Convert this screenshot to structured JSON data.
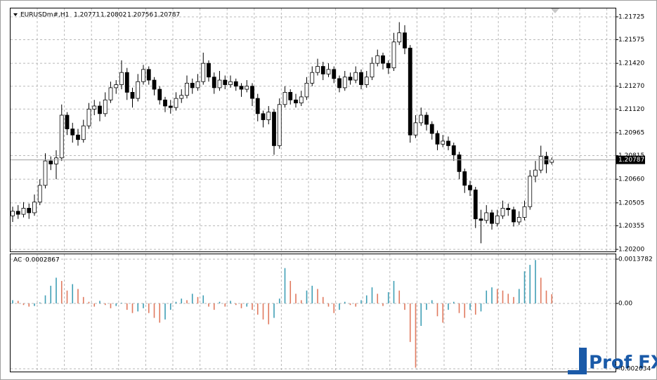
{
  "chart_data": [
    {
      "type": "candlestick",
      "title": "EURUSDm#,H1",
      "up_color": "#ffffff",
      "down_color": "#000000",
      "grid": true,
      "ylim": [
        1.20191,
        1.2178
      ],
      "yticks": [
        {
          "value": 1.202,
          "label": "1.20200"
        },
        {
          "value": 1.20355,
          "label": "1.20355"
        },
        {
          "value": 1.20505,
          "label": "1.20505"
        },
        {
          "value": 1.2066,
          "label": "1.20660"
        },
        {
          "value": 1.20815,
          "label": "1.20815"
        },
        {
          "value": 1.20965,
          "label": "1.20965"
        },
        {
          "value": 1.2112,
          "label": "1.21120"
        },
        {
          "value": 1.2127,
          "label": "1.21270"
        },
        {
          "value": 1.2142,
          "label": "1.21420"
        },
        {
          "value": 1.21575,
          "label": "1.21575"
        },
        {
          "value": 1.21725,
          "label": "1.21725"
        }
      ],
      "open": [
        1.2042,
        1.2045,
        1.2043,
        1.2047,
        1.2044,
        1.2051,
        1.2062,
        1.2078,
        1.2076,
        1.208,
        1.2108,
        1.2099,
        1.2095,
        1.2092,
        1.2101,
        1.2112,
        1.2114,
        1.2109,
        1.2118,
        1.2126,
        1.2128,
        1.2136,
        1.2123,
        1.2119,
        1.213,
        1.2138,
        1.2131,
        1.2125,
        1.2118,
        1.2114,
        1.2113,
        1.2119,
        1.2121,
        1.2129,
        1.2126,
        1.213,
        1.2142,
        1.2133,
        1.2126,
        1.2131,
        1.2128,
        1.213,
        1.2127,
        1.2125,
        1.2127,
        1.2119,
        1.2109,
        1.2105,
        1.211,
        1.2088,
        1.2115,
        1.2123,
        1.2118,
        1.2116,
        1.212,
        1.2129,
        1.2136,
        1.214,
        1.2135,
        1.2138,
        1.2132,
        1.2126,
        1.2133,
        1.2131,
        1.2136,
        1.2128,
        1.2133,
        1.2142,
        1.2147,
        1.2142,
        1.2139,
        1.2156,
        1.2162,
        1.2152,
        1.2095,
        1.2103,
        1.2108,
        1.2102,
        1.2096,
        1.2089,
        1.2091,
        1.2088,
        1.2082,
        1.2071,
        1.2062,
        1.2059,
        1.204,
        1.2039,
        1.2044,
        1.2037,
        1.2042,
        1.2047,
        1.2046,
        1.2038,
        1.2041,
        1.2048,
        1.2068,
        1.2072,
        1.2081,
        1.20771
      ],
      "high": [
        1.2048,
        1.2049,
        1.2051,
        1.205,
        1.2056,
        1.2066,
        1.2083,
        1.2081,
        1.2085,
        1.2115,
        1.211,
        1.2103,
        1.2099,
        1.2105,
        1.2116,
        1.2118,
        1.2117,
        1.2123,
        1.213,
        1.2131,
        1.2144,
        1.2139,
        1.2126,
        1.2135,
        1.2141,
        1.214,
        1.2133,
        1.2127,
        1.212,
        1.2118,
        1.2123,
        1.2125,
        1.2134,
        1.2132,
        1.2135,
        1.2149,
        1.2144,
        1.2136,
        1.2137,
        1.2134,
        1.2134,
        1.2132,
        1.2129,
        1.2131,
        1.2129,
        1.2122,
        1.2111,
        1.2114,
        1.2112,
        1.2119,
        1.2127,
        1.2125,
        1.2122,
        1.2124,
        1.2133,
        1.214,
        1.2145,
        1.2143,
        1.2142,
        1.214,
        1.2134,
        1.2137,
        1.2136,
        1.214,
        1.2138,
        1.2137,
        1.2146,
        1.2151,
        1.2149,
        1.2144,
        1.2162,
        1.2169,
        1.2167,
        1.2154,
        1.2108,
        1.2113,
        1.211,
        1.2104,
        1.2098,
        1.2095,
        1.2094,
        1.209,
        1.2084,
        1.2073,
        1.2065,
        1.2061,
        1.2046,
        1.2049,
        1.2046,
        1.2046,
        1.2052,
        1.205,
        1.2048,
        1.2045,
        1.2052,
        1.2072,
        1.2078,
        1.2088,
        1.2084,
        1.20802
      ],
      "low": [
        1.2038,
        1.204,
        1.2041,
        1.204,
        1.2042,
        1.2049,
        1.206,
        1.2072,
        1.2066,
        1.2078,
        1.2095,
        1.209,
        1.2088,
        1.209,
        1.2099,
        1.2108,
        1.2104,
        1.2107,
        1.2116,
        1.2122,
        1.2125,
        1.2118,
        1.2113,
        1.2117,
        1.2128,
        1.2128,
        1.2121,
        1.2115,
        1.211,
        1.2109,
        1.2111,
        1.2116,
        1.2119,
        1.2122,
        1.2124,
        1.2128,
        1.213,
        1.2122,
        1.2124,
        1.2125,
        1.2126,
        1.2124,
        1.212,
        1.2123,
        1.2114,
        1.2104,
        1.21,
        1.2102,
        1.2082,
        1.2086,
        1.2113,
        1.2115,
        1.2113,
        1.2114,
        1.2118,
        1.2127,
        1.2134,
        1.2131,
        1.2133,
        1.2129,
        1.2123,
        1.2124,
        1.2128,
        1.2129,
        1.2125,
        1.2126,
        1.2131,
        1.214,
        1.2138,
        1.2135,
        1.2137,
        1.2154,
        1.2148,
        1.209,
        1.2093,
        1.2101,
        1.2098,
        1.2092,
        1.2085,
        1.2087,
        1.2085,
        1.2078,
        1.2066,
        1.2057,
        1.2055,
        1.2034,
        1.2024,
        1.2037,
        1.2033,
        1.2035,
        1.204,
        1.2042,
        1.2035,
        1.2036,
        1.2039,
        1.2046,
        1.2064,
        1.207,
        1.207,
        1.20756
      ],
      "close": [
        1.2045,
        1.2043,
        1.2047,
        1.2044,
        1.2051,
        1.2062,
        1.2078,
        1.2076,
        1.208,
        1.2108,
        1.2099,
        1.2095,
        1.2092,
        1.2101,
        1.2112,
        1.2114,
        1.2109,
        1.2118,
        1.2126,
        1.2128,
        1.2136,
        1.2123,
        1.2119,
        1.213,
        1.2138,
        1.2131,
        1.2125,
        1.2118,
        1.2114,
        1.2113,
        1.2119,
        1.2121,
        1.2129,
        1.2126,
        1.213,
        1.2142,
        1.2133,
        1.2126,
        1.2131,
        1.2128,
        1.213,
        1.2127,
        1.2125,
        1.2127,
        1.2119,
        1.2109,
        1.2105,
        1.211,
        1.2088,
        1.2115,
        1.2123,
        1.2118,
        1.2116,
        1.212,
        1.2129,
        1.2136,
        1.214,
        1.2135,
        1.2138,
        1.2132,
        1.2126,
        1.2133,
        1.2131,
        1.2136,
        1.2128,
        1.2133,
        1.2142,
        1.2147,
        1.2142,
        1.2139,
        1.2156,
        1.2162,
        1.2152,
        1.2095,
        1.2103,
        1.2108,
        1.2102,
        1.2096,
        1.2089,
        1.2091,
        1.2088,
        1.2082,
        1.2071,
        1.2062,
        1.2059,
        1.204,
        1.2039,
        1.2044,
        1.2037,
        1.2042,
        1.2047,
        1.2046,
        1.2038,
        1.2041,
        1.2048,
        1.2068,
        1.2072,
        1.2081,
        1.2076,
        1.20787
      ]
    },
    {
      "type": "bar",
      "title": "AC",
      "up_color": "#3f9fb5",
      "down_color": "#e07a5f",
      "grid": true,
      "ylim": [
        -0.0021,
        0.00153
      ],
      "yticks": [
        -0.002034,
        {
          "value": 0,
          "label": "0.00"
        },
        0.0013782
      ],
      "values": [
        0.0001,
        8e-05,
        -5e-05,
        -0.0001,
        -8e-05,
        3e-05,
        0.00025,
        0.00055,
        0.0008,
        0.0007,
        0.0004,
        0.0006,
        0.00045,
        0.0002,
        5e-05,
        -0.0001,
        8e-05,
        -5e-05,
        -0.00015,
        -8e-05,
        2e-05,
        -0.0002,
        -0.0003,
        -0.00025,
        -0.00015,
        -0.0003,
        -0.00045,
        -0.0006,
        -0.0005,
        -0.0002,
        5e-05,
        0.00015,
        0.0001,
        0.0003,
        0.0002,
        0.00025,
        -0.0001,
        -0.0002,
        5e-05,
        -0.0001,
        8e-05,
        -5e-05,
        -0.00015,
        -0.0001,
        -0.0002,
        -0.00035,
        -0.0005,
        -0.00065,
        -0.00045,
        0.00015,
        0.0011,
        0.0007,
        0.0003,
        0.0001,
        0.0004,
        0.00055,
        0.00045,
        0.0002,
        -0.0001,
        -0.0003,
        -0.0002,
        5e-05,
        -5e-05,
        -0.0001,
        0.0001,
        0.00025,
        0.0005,
        0.0003,
        -8e-05,
        0.00035,
        0.0007,
        0.0004,
        -0.0002,
        -0.0012,
        -0.002,
        -0.0007,
        -0.0002,
        0.0001,
        -0.0004,
        -0.0006,
        -0.0002,
        5e-05,
        -0.0003,
        -0.00045,
        -0.0002,
        -0.00035,
        -0.00025,
        0.0004,
        0.0005,
        0.00045,
        0.0004,
        0.0003,
        0.0002,
        0.00045,
        0.001,
        0.0012,
        0.00135,
        0.0008,
        0.0004,
        0.0002867
      ]
    },
    {
      "type": "watermark",
      "title": "Prof FX",
      "color": "#1a5aa8"
    }
  ]
}
